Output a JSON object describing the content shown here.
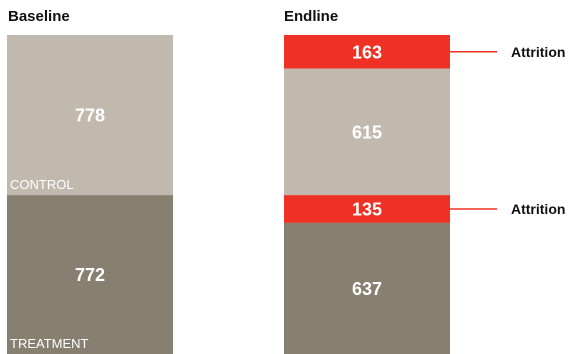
{
  "colors": {
    "control": "#c1b9ad",
    "treatment": "#877f6f",
    "attrition": "#ee3124",
    "label_light": "#ffffff",
    "text_dark": "#111111"
  },
  "chart_data": {
    "type": "bar",
    "title": "",
    "columns": [
      {
        "title": "Baseline",
        "segments": [
          {
            "group": "control",
            "value": 778,
            "label": "778",
            "caption": "CONTROL"
          },
          {
            "group": "treatment",
            "value": 772,
            "label": "772",
            "caption": "TREATMENT"
          }
        ]
      },
      {
        "title": "Endline",
        "segments": [
          {
            "group": "attrition",
            "value": 163,
            "label": "163",
            "annotation": "Attrition"
          },
          {
            "group": "control",
            "value": 615,
            "label": "615"
          },
          {
            "group": "attrition",
            "value": 135,
            "label": "135",
            "annotation": "Attrition"
          },
          {
            "group": "treatment",
            "value": 637,
            "label": "637"
          }
        ]
      }
    ]
  }
}
